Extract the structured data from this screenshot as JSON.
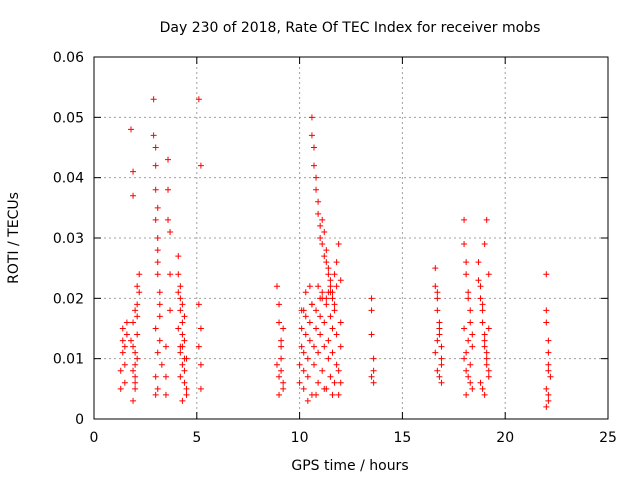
{
  "chart_data": {
    "type": "scatter",
    "title": "Day 230 of 2018, Rate Of TEC Index for receiver mobs",
    "xlabel": "GPS time / hours",
    "ylabel": "ROTI / TECUs",
    "xlim": [
      0,
      25
    ],
    "ylim": [
      0,
      0.06
    ],
    "x_ticks": [
      0,
      5,
      10,
      15,
      20,
      25
    ],
    "x_tick_labels": [
      "0",
      "5",
      "10",
      "15",
      "20",
      "25"
    ],
    "y_ticks": [
      0,
      0.01,
      0.02,
      0.03,
      0.04,
      0.05,
      0.06
    ],
    "y_tick_labels": [
      "0",
      "0.01",
      "0.02",
      "0.03",
      "0.04",
      "0.05",
      "0.06"
    ],
    "grid": true,
    "marker": "+",
    "series": [
      {
        "name": "ROTI",
        "color": "#ff0000",
        "x": [
          1.3,
          1.3,
          1.4,
          1.4,
          1.4,
          1.5,
          1.5,
          1.5,
          1.6,
          1.6,
          1.8,
          1.9,
          1.9,
          1.9,
          2.0,
          2.0,
          2.0,
          2.0,
          2.1,
          2.1,
          2.1,
          2.1,
          2.2,
          2.2,
          1.9,
          1.9,
          2.0,
          2.0,
          2.1,
          1.8,
          1.9,
          2.9,
          2.9,
          3.0,
          3.0,
          3.0,
          3.1,
          3.1,
          3.1,
          3.2,
          3.2,
          3.2,
          3.3,
          3.1,
          3.0,
          3.0,
          3.1,
          3.0,
          3.2,
          3.1,
          3.1,
          3.0,
          3.6,
          3.6,
          3.6,
          3.7,
          3.7,
          3.7,
          3.5,
          3.5,
          3.5,
          4.1,
          4.1,
          4.2,
          4.2,
          4.2,
          4.3,
          4.3,
          4.3,
          4.4,
          4.4,
          4.4,
          4.5,
          4.5,
          4.1,
          4.2,
          4.3,
          4.4,
          4.2,
          4.3,
          4.4,
          4.1,
          4.5,
          4.3,
          4.2,
          5.1,
          5.2,
          5.1,
          5.2,
          5.1,
          5.2,
          5.2,
          8.9,
          9.0,
          9.0,
          9.1,
          9.1,
          9.1,
          9.2,
          9.2,
          9.0,
          9.1,
          9.2,
          8.9,
          9.0,
          10.0,
          10.0,
          10.1,
          10.1,
          10.1,
          10.2,
          10.2,
          10.2,
          10.3,
          10.3,
          10.4,
          10.4,
          10.5,
          10.5,
          10.6,
          10.6,
          10.7,
          10.7,
          10.8,
          10.8,
          10.9,
          10.9,
          11.0,
          11.0,
          11.1,
          11.1,
          11.2,
          11.2,
          11.3,
          11.3,
          11.4,
          11.4,
          11.5,
          11.5,
          11.6,
          11.6,
          11.7,
          11.7,
          11.8,
          11.8,
          11.9,
          11.9,
          12.0,
          12.0,
          10.6,
          10.6,
          10.7,
          10.7,
          10.8,
          10.8,
          10.9,
          10.9,
          11.0,
          11.0,
          11.1,
          11.1,
          11.2,
          11.2,
          11.3,
          11.3,
          11.4,
          11.4,
          11.5,
          11.5,
          11.6,
          11.6,
          11.7,
          11.8,
          11.9,
          12.0,
          10.3,
          10.5,
          10.9,
          11.1,
          11.3,
          11.5,
          11.7,
          10.4,
          10.8,
          11.2,
          11.6,
          12.0,
          10.2,
          10.6,
          11.0,
          11.4,
          11.8,
          13.5,
          13.5,
          13.5,
          13.6,
          13.6,
          13.6,
          13.5,
          16.6,
          16.6,
          16.7,
          16.7,
          16.8,
          16.8,
          16.9,
          16.9,
          16.7,
          16.8,
          16.9,
          16.6,
          16.7,
          16.8,
          16.9,
          16.7,
          18.0,
          18.0,
          18.1,
          18.1,
          18.2,
          18.2,
          18.3,
          18.3,
          18.4,
          18.4,
          18.0,
          18.1,
          18.2,
          18.3,
          18.4,
          18.1,
          18.2,
          18.3,
          18.0,
          18.1,
          18.7,
          18.7,
          18.8,
          18.8,
          18.9,
          18.9,
          19.0,
          19.0,
          19.1,
          19.1,
          19.2,
          19.2,
          18.8,
          18.9,
          19.0,
          19.1,
          19.2,
          18.9,
          19.0,
          19.1,
          19.2,
          19.0,
          22.0,
          22.0,
          22.0,
          22.1,
          22.1,
          22.1,
          22.2,
          22.0,
          22.1,
          22.0,
          22.1,
          22.1
        ],
        "y": [
          0.005,
          0.008,
          0.011,
          0.013,
          0.015,
          0.006,
          0.009,
          0.012,
          0.014,
          0.016,
          0.048,
          0.041,
          0.037,
          0.003,
          0.005,
          0.007,
          0.009,
          0.011,
          0.014,
          0.017,
          0.019,
          0.022,
          0.024,
          0.021,
          0.012,
          0.016,
          0.018,
          0.006,
          0.01,
          0.013,
          0.008,
          0.053,
          0.047,
          0.045,
          0.042,
          0.038,
          0.035,
          0.03,
          0.026,
          0.021,
          0.017,
          0.013,
          0.009,
          0.005,
          0.004,
          0.007,
          0.011,
          0.015,
          0.019,
          0.024,
          0.028,
          0.033,
          0.043,
          0.038,
          0.033,
          0.031,
          0.024,
          0.018,
          0.012,
          0.007,
          0.004,
          0.027,
          0.024,
          0.022,
          0.02,
          0.018,
          0.016,
          0.014,
          0.012,
          0.01,
          0.008,
          0.006,
          0.005,
          0.004,
          0.015,
          0.011,
          0.009,
          0.013,
          0.007,
          0.019,
          0.017,
          0.021,
          0.01,
          0.003,
          0.012,
          0.053,
          0.042,
          0.019,
          0.015,
          0.012,
          0.009,
          0.005,
          0.022,
          0.019,
          0.016,
          0.013,
          0.01,
          0.008,
          0.006,
          0.005,
          0.007,
          0.012,
          0.015,
          0.009,
          0.004,
          0.006,
          0.009,
          0.012,
          0.015,
          0.018,
          0.005,
          0.008,
          0.011,
          0.014,
          0.017,
          0.007,
          0.01,
          0.013,
          0.016,
          0.019,
          0.004,
          0.009,
          0.012,
          0.015,
          0.018,
          0.006,
          0.011,
          0.014,
          0.017,
          0.02,
          0.008,
          0.012,
          0.016,
          0.019,
          0.005,
          0.01,
          0.013,
          0.017,
          0.007,
          0.011,
          0.015,
          0.018,
          0.006,
          0.009,
          0.014,
          0.004,
          0.008,
          0.012,
          0.016,
          0.05,
          0.047,
          0.045,
          0.042,
          0.04,
          0.038,
          0.036,
          0.034,
          0.032,
          0.03,
          0.033,
          0.029,
          0.031,
          0.027,
          0.028,
          0.026,
          0.025,
          0.024,
          0.023,
          0.022,
          0.021,
          0.02,
          0.024,
          0.026,
          0.029,
          0.023,
          0.021,
          0.022,
          0.022,
          0.021,
          0.02,
          0.021,
          0.019,
          0.003,
          0.004,
          0.005,
          0.004,
          0.006,
          0.018,
          0.019,
          0.02,
          0.021,
          0.022,
          0.02,
          0.018,
          0.014,
          0.01,
          0.008,
          0.006,
          0.007,
          0.025,
          0.022,
          0.02,
          0.018,
          0.016,
          0.014,
          0.012,
          0.01,
          0.008,
          0.007,
          0.006,
          0.011,
          0.013,
          0.015,
          0.009,
          0.021,
          0.033,
          0.029,
          0.026,
          0.024,
          0.021,
          0.02,
          0.018,
          0.016,
          0.014,
          0.012,
          0.01,
          0.008,
          0.007,
          0.006,
          0.005,
          0.011,
          0.013,
          0.009,
          0.015,
          0.004,
          0.026,
          0.023,
          0.022,
          0.02,
          0.018,
          0.016,
          0.014,
          0.012,
          0.01,
          0.009,
          0.008,
          0.007,
          0.006,
          0.005,
          0.004,
          0.011,
          0.015,
          0.019,
          0.029,
          0.033,
          0.024,
          0.013,
          0.024,
          0.018,
          0.016,
          0.013,
          0.011,
          0.009,
          0.007,
          0.005,
          0.004,
          0.002,
          0.003,
          0.008
        ]
      }
    ]
  }
}
